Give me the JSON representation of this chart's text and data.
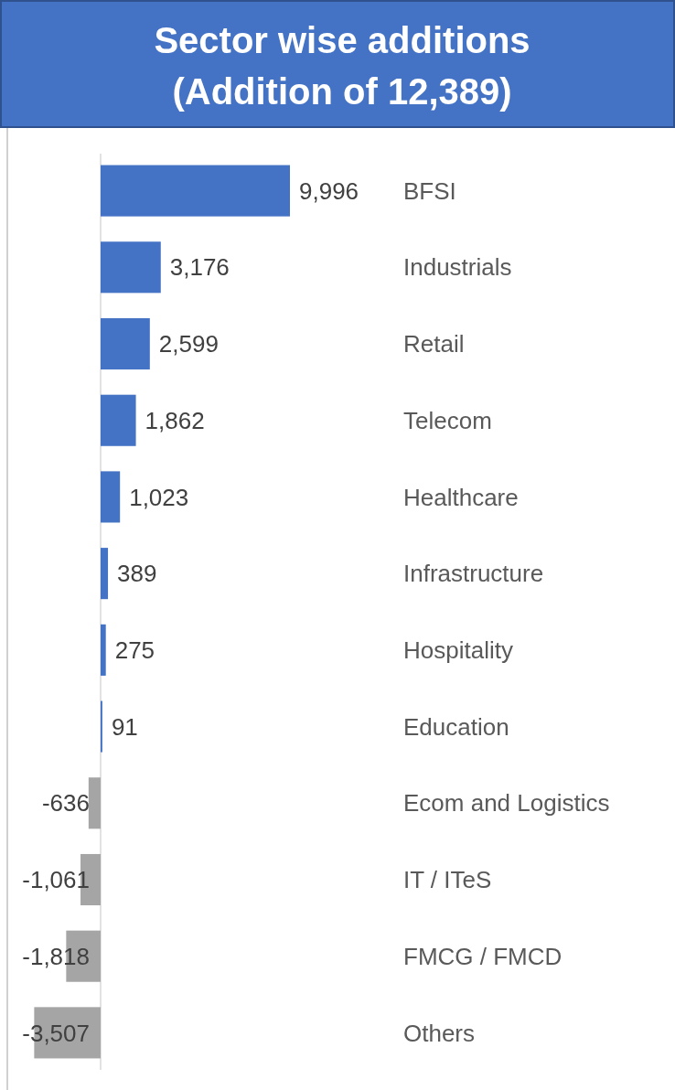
{
  "chart_data": {
    "type": "bar",
    "orientation": "horizontal",
    "title": "Sector wise additions",
    "subtitle": "(Addition of 12,389)",
    "categories": [
      "BFSI",
      "Industrials",
      "Retail",
      "Telecom",
      "Healthcare",
      "Infrastructure",
      "Hospitality",
      "Education",
      "Ecom and Logistics",
      "IT / ITeS",
      "FMCG / FMCD",
      "Others"
    ],
    "values": [
      9996,
      3176,
      2599,
      1862,
      1023,
      389,
      275,
      91,
      -636,
      -1061,
      -1818,
      -3507
    ],
    "colors": [
      "#4472c4",
      "#4472c4",
      "#4472c4",
      "#4472c4",
      "#4472c4",
      "#4472c4",
      "#4472c4",
      "#4472c4",
      "#a5a5a5",
      "#a5a5a5",
      "#a5a5a5",
      "#a5a5a5"
    ],
    "value_labels": [
      "9,996",
      "3,176",
      "2,599",
      "1,862",
      "1,023",
      "389",
      "275",
      "91",
      "-636",
      "-1,061",
      "-1,818",
      "-3,507"
    ]
  }
}
